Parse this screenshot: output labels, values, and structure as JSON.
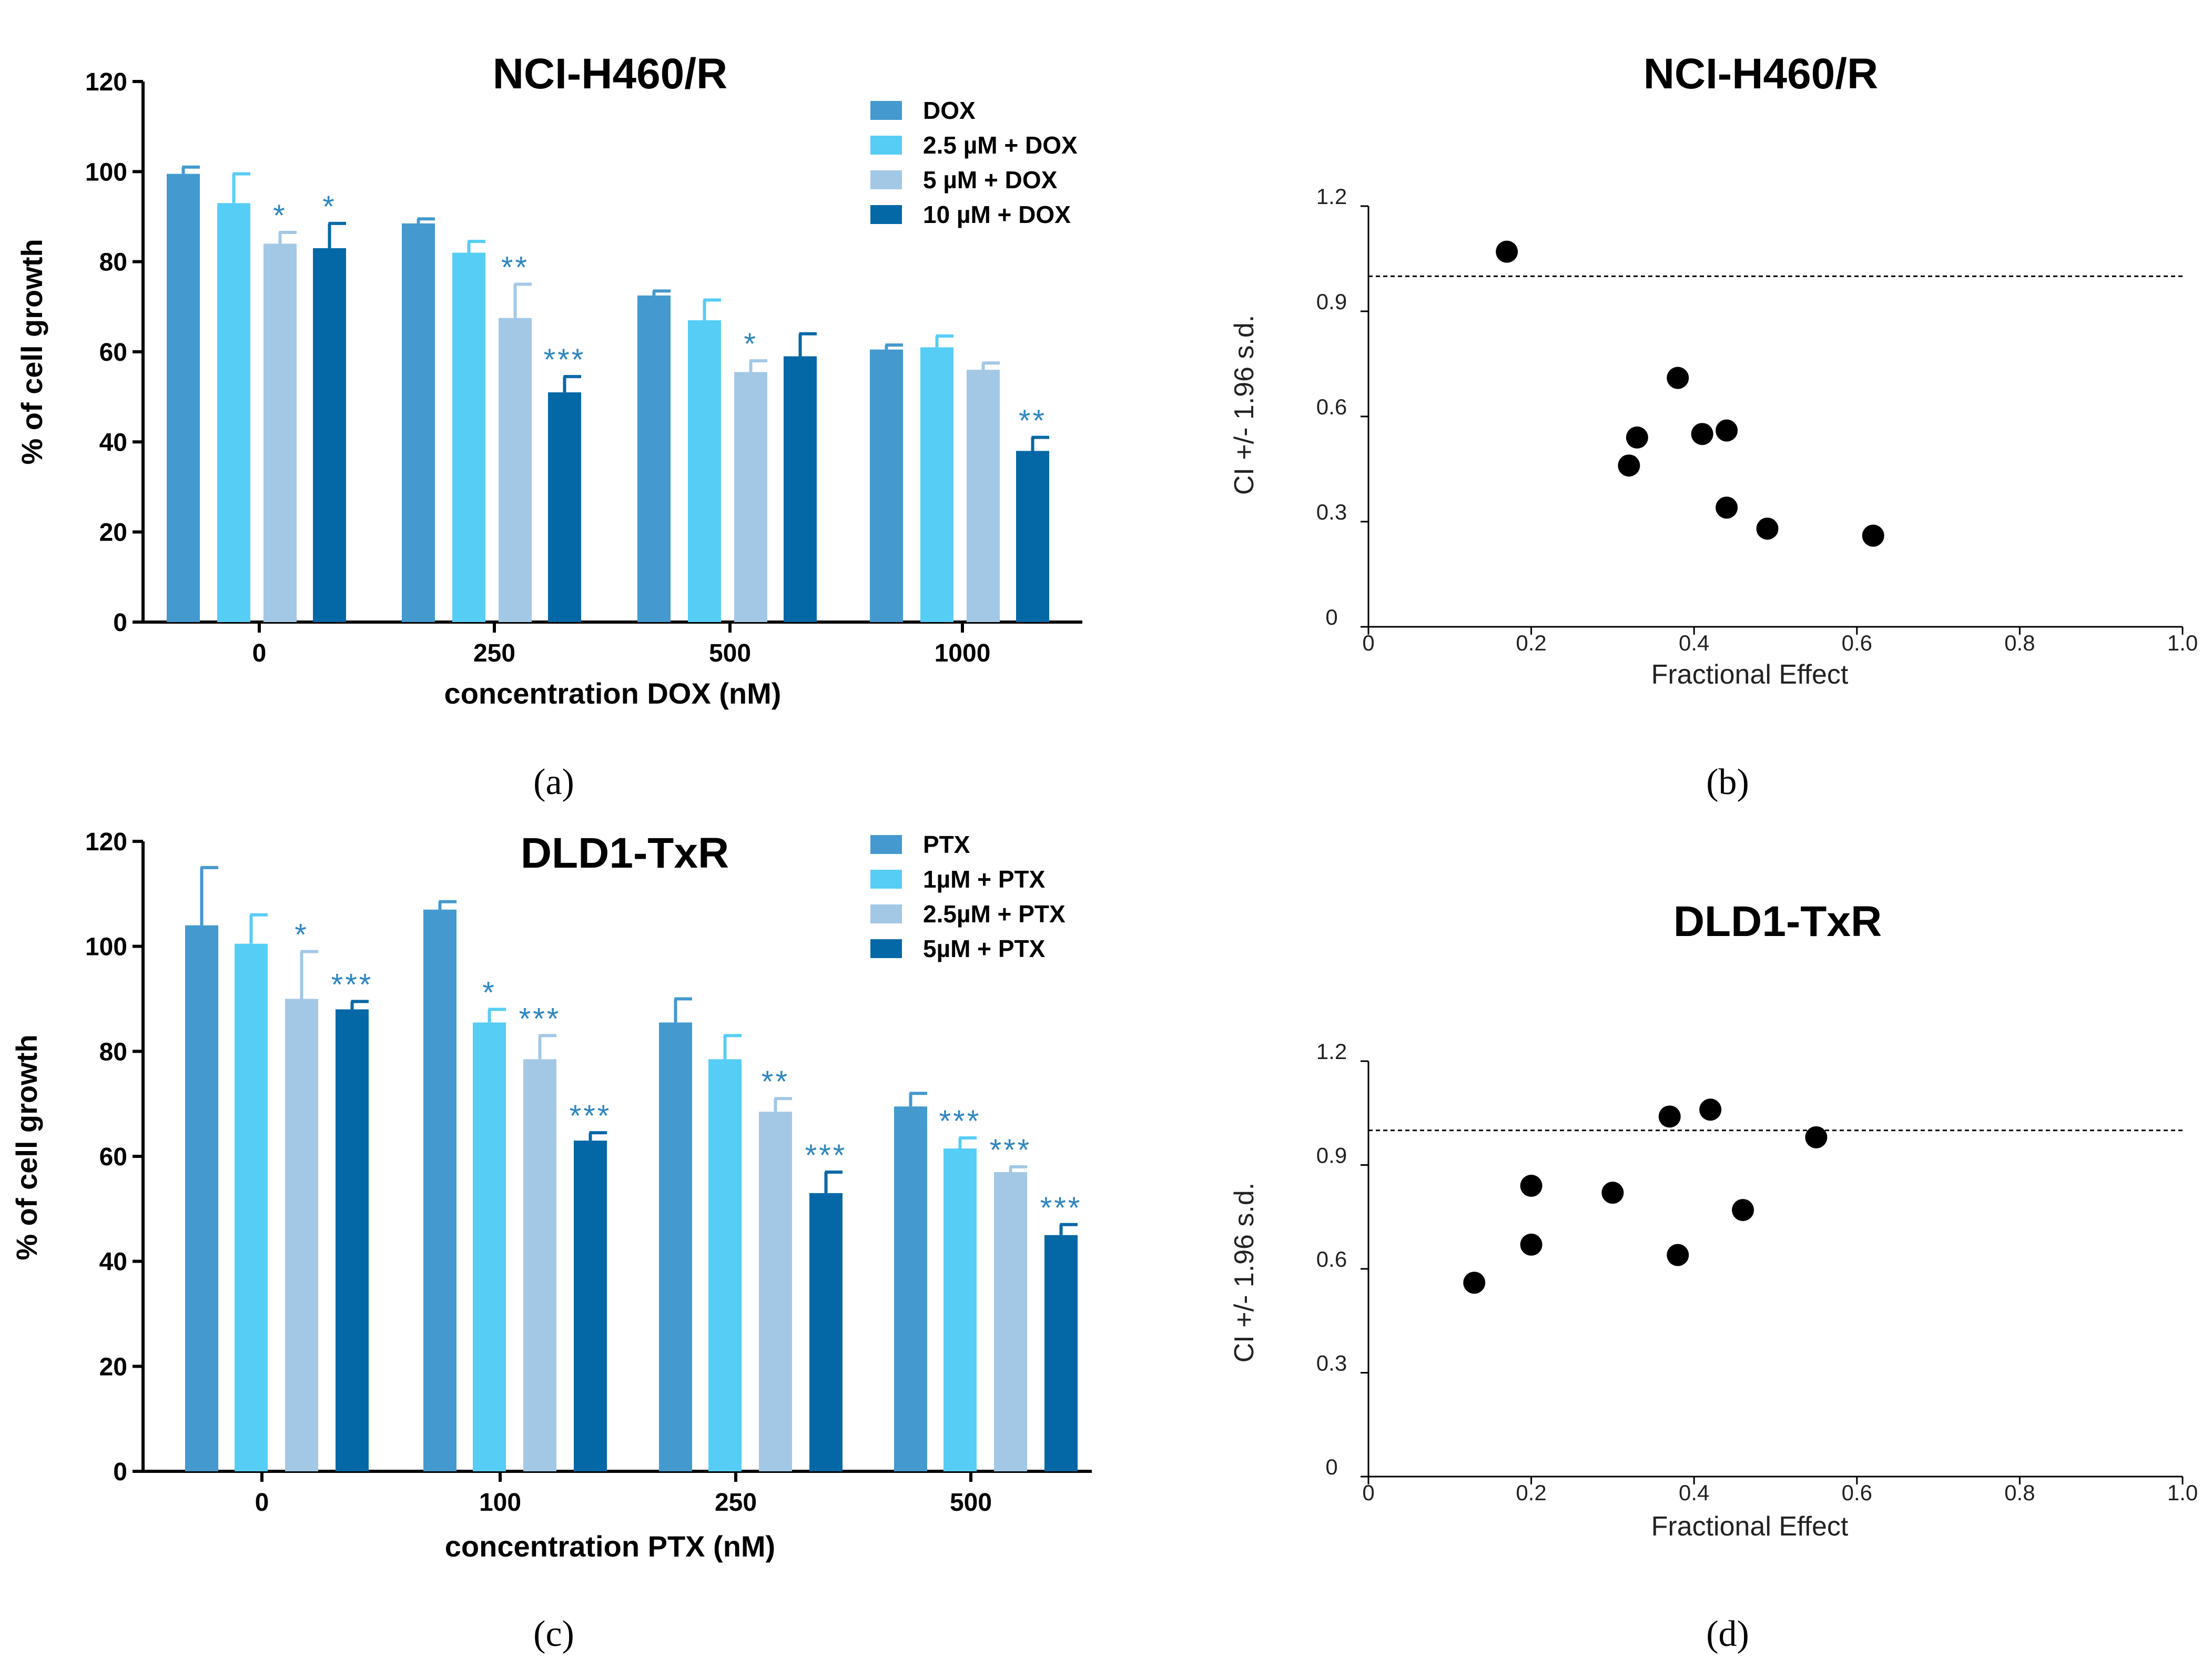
{
  "chart_data": [
    {
      "panel": "a",
      "type": "bar",
      "title": "NCI-H460/R",
      "xlabel": "concentration DOX (nM)",
      "ylabel": "% of cell growth",
      "ylim": [
        0,
        120
      ],
      "yticks": [
        "0",
        "20",
        "40",
        "60",
        "80",
        "100",
        "120"
      ],
      "categories": [
        "0",
        "250",
        "500",
        "1000"
      ],
      "legend_position": "top-right",
      "series": [
        {
          "name": "DOX",
          "color": "#4499cf",
          "values": [
            99.5,
            88.5,
            72.5,
            60.5
          ],
          "errors": [
            1.5,
            1,
            1,
            1
          ],
          "significance": [
            "",
            "",
            "",
            ""
          ]
        },
        {
          "name": "2.5 µM + DOX",
          "color": "#56cdf5",
          "values": [
            93,
            82,
            67,
            61
          ],
          "errors": [
            6.5,
            2.5,
            4.5,
            2.5
          ],
          "significance": [
            "",
            "",
            "",
            ""
          ]
        },
        {
          "name": "5 µM + DOX",
          "color": "#a2c8e6",
          "values": [
            84,
            67.5,
            55.5,
            56
          ],
          "errors": [
            2.5,
            7.5,
            2.5,
            1.5
          ],
          "significance": [
            "*",
            "**",
            "*",
            ""
          ]
        },
        {
          "name": "10 µM + DOX",
          "color": "#0568a6",
          "values": [
            83,
            51,
            59,
            38
          ],
          "errors": [
            5.5,
            3.5,
            5,
            3
          ],
          "significance": [
            "*",
            "***",
            "",
            "**"
          ]
        }
      ]
    },
    {
      "panel": "b",
      "type": "scatter",
      "title": "NCI-H460/R",
      "xlabel": "Fractional Effect",
      "ylabel": "CI +/- 1.96 s.d.",
      "xlim": [
        0,
        1.0
      ],
      "ylim": [
        0,
        1.2
      ],
      "xticks": [
        "0",
        "0.2",
        "0.4",
        "0.6",
        "0.8",
        "1.0"
      ],
      "yticks": [
        "0",
        "0.3",
        "0.6",
        "0.9",
        "1.2"
      ],
      "reference_line": 1.0,
      "x": [
        0.17,
        0.32,
        0.33,
        0.38,
        0.41,
        0.44,
        0.44,
        0.49,
        0.62
      ],
      "y": [
        1.07,
        0.46,
        0.54,
        0.71,
        0.55,
        0.56,
        0.34,
        0.28,
        0.26
      ]
    },
    {
      "panel": "c",
      "type": "bar",
      "title": "DLD1-TxR",
      "xlabel": "concentration PTX (nM)",
      "ylabel": "% of cell growth",
      "ylim": [
        0,
        120
      ],
      "yticks": [
        "0",
        "20",
        "40",
        "60",
        "80",
        "100",
        "120"
      ],
      "categories": [
        "0",
        "100",
        "250",
        "500"
      ],
      "legend_position": "top-right",
      "series": [
        {
          "name": "PTX",
          "color": "#4499cf",
          "values": [
            104,
            107,
            85.5,
            69.5
          ],
          "errors": [
            11,
            1.5,
            4.5,
            2.5
          ],
          "significance": [
            "",
            "",
            "",
            ""
          ]
        },
        {
          "name": "1µM + PTX",
          "color": "#56cdf5",
          "values": [
            100.5,
            85.5,
            78.5,
            61.5
          ],
          "errors": [
            5.5,
            2.5,
            4.5,
            2
          ],
          "significance": [
            "",
            "*",
            "",
            "***"
          ]
        },
        {
          "name": "2.5µM + PTX",
          "color": "#a2c8e6",
          "values": [
            90,
            78.5,
            68.5,
            57
          ],
          "errors": [
            9,
            4.5,
            2.5,
            1
          ],
          "significance": [
            "*",
            "***",
            "**",
            "***"
          ]
        },
        {
          "name": "5µM + PTX",
          "color": "#0568a6",
          "values": [
            88,
            63,
            53,
            45
          ],
          "errors": [
            1.5,
            1.5,
            4,
            2
          ],
          "significance": [
            "***",
            "***",
            "***",
            "***"
          ]
        }
      ]
    },
    {
      "panel": "d",
      "type": "scatter",
      "title": "DLD1-TxR",
      "xlabel": "Fractional Effect",
      "ylabel": "CI +/- 1.96 s.d.",
      "xlim": [
        0,
        1.0
      ],
      "ylim": [
        0,
        1.2
      ],
      "xticks": [
        "0",
        "0.2",
        "0.4",
        "0.6",
        "0.8",
        "1.0"
      ],
      "yticks": [
        "0",
        "0.3",
        "0.6",
        "0.9",
        "1.2"
      ],
      "reference_line": 1.0,
      "x": [
        0.13,
        0.2,
        0.2,
        0.3,
        0.37,
        0.38,
        0.42,
        0.46,
        0.55
      ],
      "y": [
        0.56,
        0.84,
        0.67,
        0.82,
        1.04,
        0.64,
        1.06,
        0.77,
        0.98
      ]
    }
  ],
  "panel_labels": [
    "(a)",
    "(b)",
    "(c)",
    "(d)"
  ]
}
